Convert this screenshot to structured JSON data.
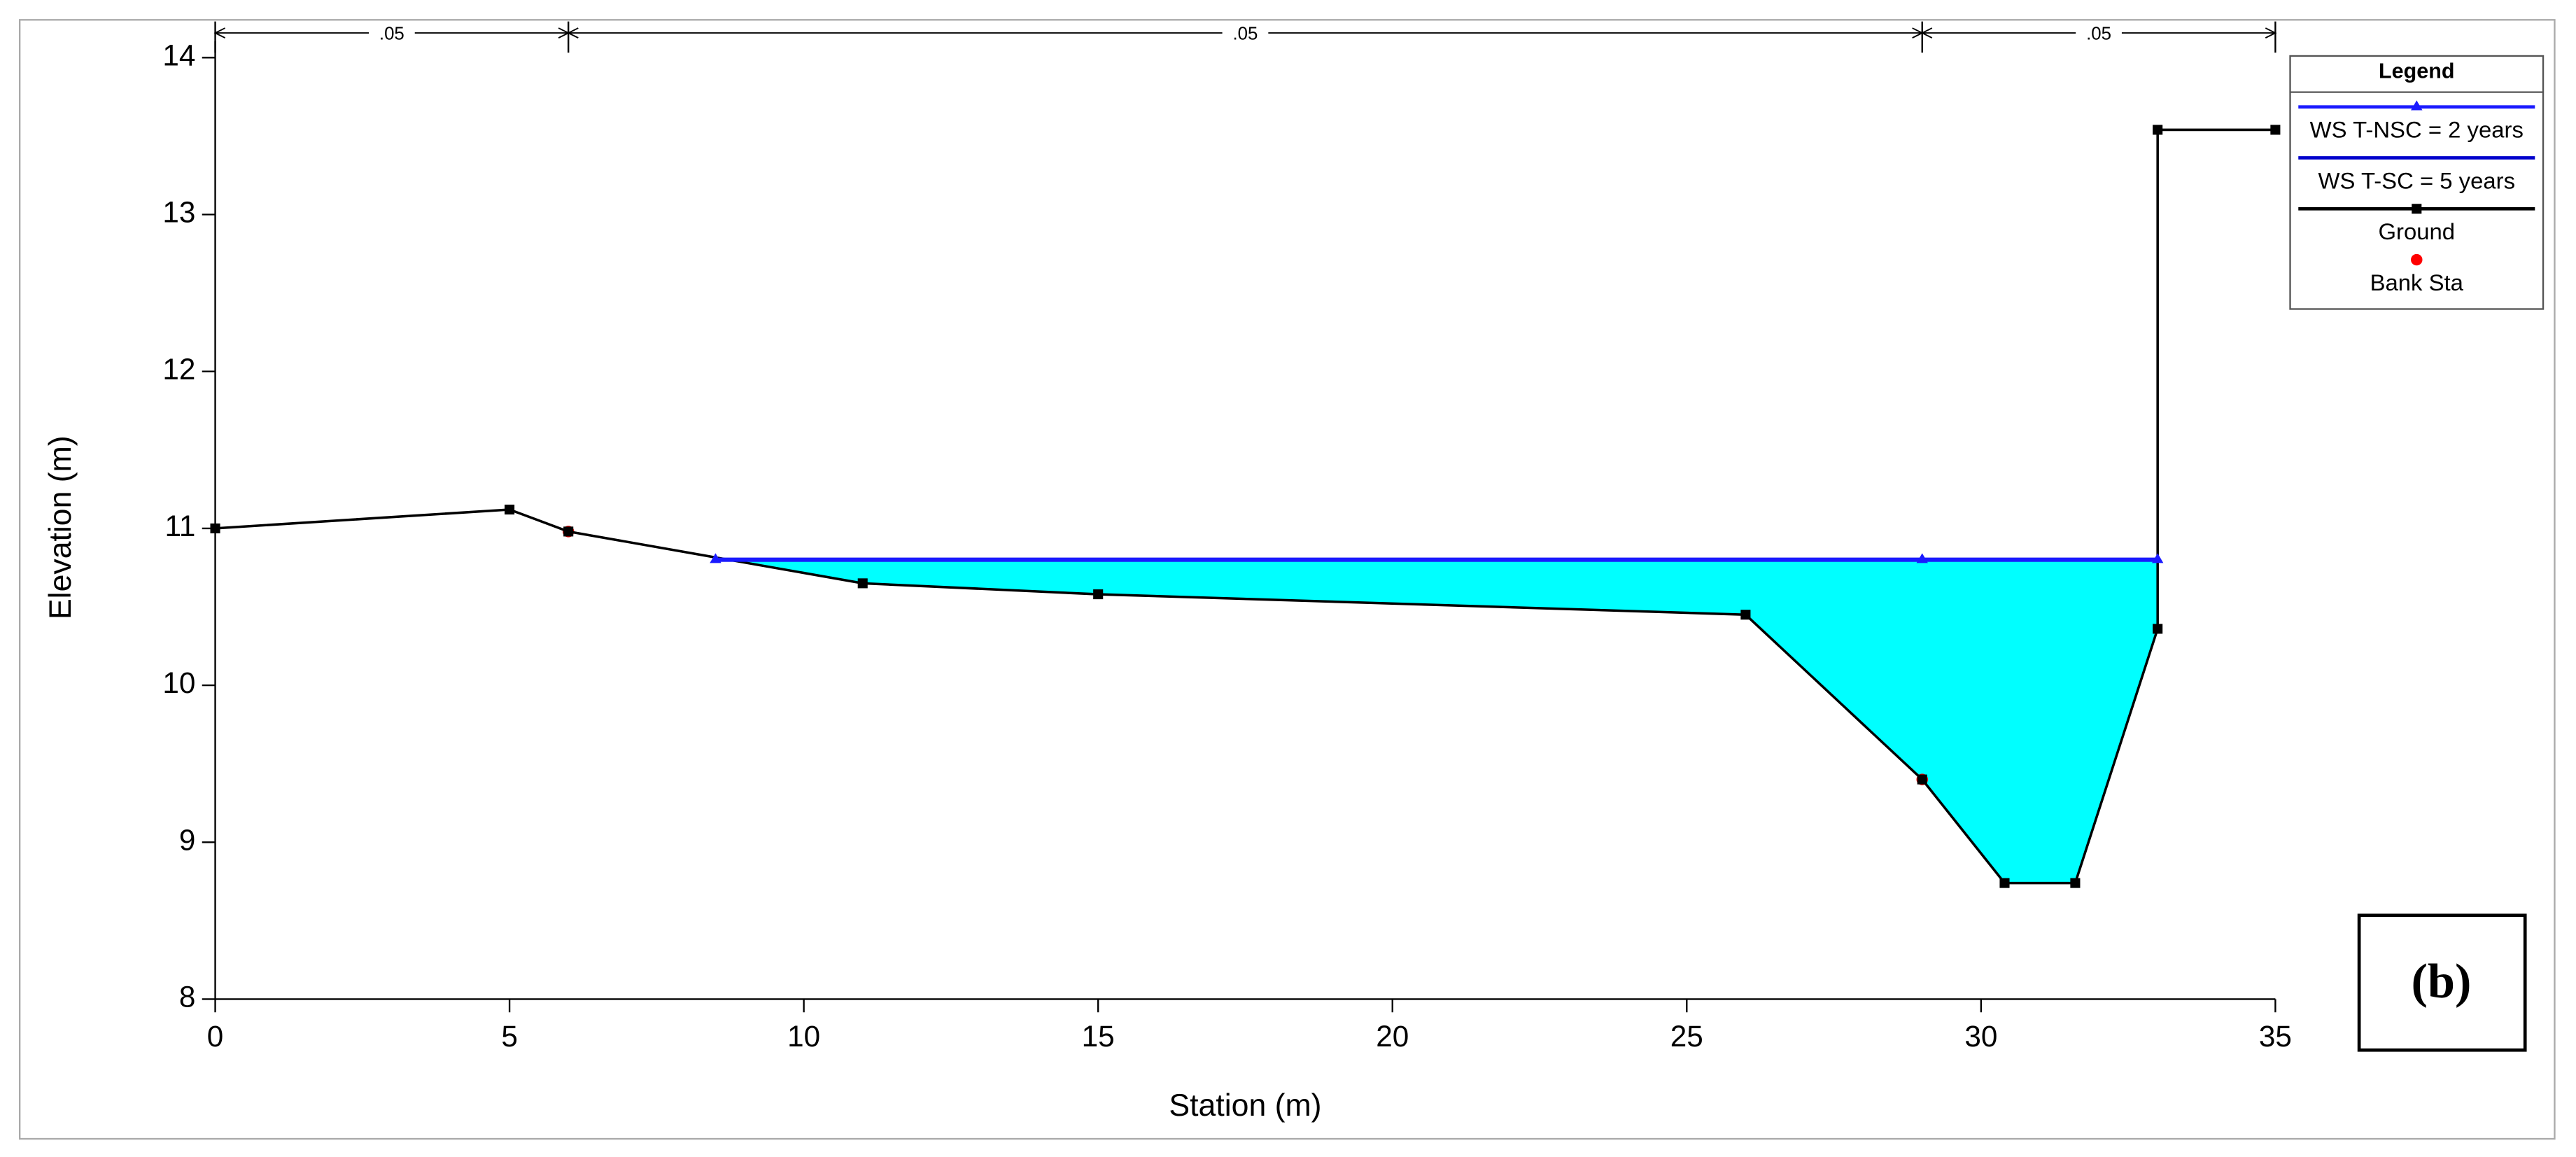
{
  "chart_data": {
    "type": "line",
    "xlabel": "Station (m)",
    "ylabel": "Elevation (m)",
    "xlim": [
      0,
      35
    ],
    "ylim": [
      8,
      14
    ],
    "xticks": [
      0,
      5,
      10,
      15,
      20,
      25,
      30,
      35
    ],
    "yticks": [
      8,
      9,
      10,
      11,
      12,
      13,
      14
    ],
    "legend_title": "Legend",
    "legend_position": "upper right",
    "panel_label": "(b)",
    "mannings_n": {
      "labels": [
        ".05",
        ".05",
        ".05"
      ],
      "breaks": [
        0,
        6,
        29,
        35
      ]
    },
    "series": [
      {
        "name": "WS T-NSC = 2 years",
        "color": "#1a1aff",
        "marker": "triangle",
        "x": [
          8.5,
          29,
          33
        ],
        "values": [
          10.8,
          10.8,
          10.8
        ]
      },
      {
        "name": "WS T-SC = 5 years",
        "color": "#0000cc",
        "marker": "none",
        "x": [
          8.5,
          29,
          33
        ],
        "values": [
          10.8,
          10.8,
          10.8
        ]
      },
      {
        "name": "Ground",
        "color": "#000000",
        "marker": "square",
        "x": [
          0,
          5,
          6,
          11,
          15,
          26,
          29,
          30.4,
          31.6,
          33,
          33,
          35
        ],
        "values": [
          11.0,
          11.12,
          10.98,
          10.65,
          10.58,
          10.45,
          9.4,
          8.74,
          8.74,
          10.36,
          13.54,
          13.54
        ]
      },
      {
        "name": "Bank Sta",
        "color": "#ff0000",
        "marker": "circle",
        "line": false,
        "x": [
          6,
          29
        ],
        "values": [
          10.98,
          9.4
        ]
      }
    ],
    "fill_color": "#00ffff"
  }
}
